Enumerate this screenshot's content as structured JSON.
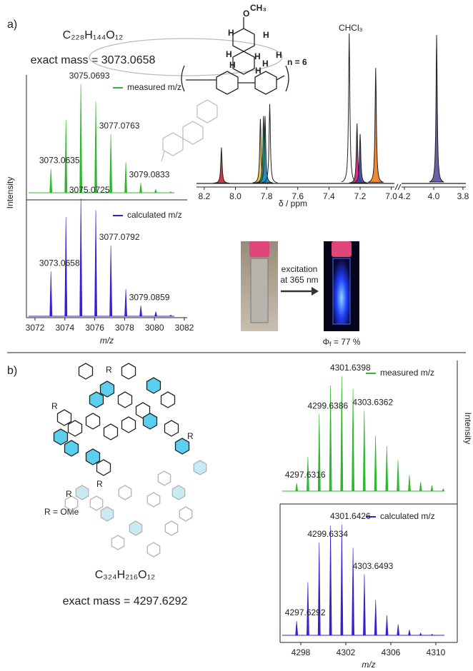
{
  "panel_labels": [
    "a)",
    "b)"
  ],
  "formula_a": "C₂₂₈H₁₄₄O₁₂",
  "exact_mass_a": "exact mass = 3073.0658",
  "structure_a_labels": [
    {
      "text": "O",
      "color": "#222222"
    },
    {
      "text": "CH₃",
      "color": "#222222"
    },
    {
      "text": "H",
      "color": "#1e8fd0"
    },
    {
      "text": "H",
      "color": "#d21f7a"
    },
    {
      "text": "H",
      "color": "#2aa84a"
    },
    {
      "text": "H",
      "color": "#c0282d"
    },
    {
      "text": "H",
      "color": "#1e8fd0"
    },
    {
      "text": "H",
      "color": "#d21f7a"
    },
    {
      "text": "H",
      "color": "#f07b1f"
    },
    {
      "text": "H",
      "color": "#c9a92a"
    },
    {
      "text": "n = 6",
      "color": "#222222"
    }
  ],
  "photo": {
    "excitation": [
      "excitation",
      "at 365 nm"
    ],
    "quantum_yield": [
      "Φ",
      "f",
      " = 77 %"
    ]
  },
  "formula_b": "C₃₂₄H₂₁₆O₁₂",
  "exact_mass_b": "exact mass = 4297.6292",
  "r_labels": [
    "R",
    "R",
    "R",
    "R",
    "R"
  ],
  "r_definition": "R = OMe",
  "chart_data": [
    {
      "type": "stick",
      "ylabel": "Intensity",
      "xlim": [
        3072,
        3082
      ],
      "ylim": [
        0,
        100
      ],
      "series": [
        {
          "name": "measured m/z",
          "color": "#2db82d",
          "x": [
            3073.0635,
            3074.07,
            3075.0693,
            3076.07,
            3077.0763,
            3078.08,
            3079.0833,
            3080.08,
            3081.09
          ],
          "values": [
            22,
            67,
            100,
            84,
            54,
            28,
            9,
            3,
            1
          ]
        }
      ],
      "peak_labels": [
        3073.0635,
        3075.0693,
        3077.0763,
        3079.0833
      ]
    },
    {
      "type": "stick",
      "xlabel": "m/z",
      "xlim": [
        3072,
        3082
      ],
      "ylim": [
        0,
        100
      ],
      "xticks": [
        3072,
        3074,
        3076,
        3078,
        3080,
        3082
      ],
      "series": [
        {
          "name": "calculated m/z",
          "color": "#3a1fd0",
          "x": [
            3073.0658,
            3074.07,
            3075.0725,
            3076.07,
            3077.0792,
            3078.08,
            3079.0859,
            3080.09,
            3081.09
          ],
          "values": [
            38,
            84,
            100,
            90,
            60,
            23,
            9,
            4,
            1
          ]
        }
      ],
      "peak_labels": [
        3073.0658,
        3075.0725,
        3077.0792,
        3079.0859
      ]
    },
    {
      "type": "nmr",
      "xlabel": "δ / ppm",
      "annotation": "CHCl₃",
      "ylim": [
        0,
        100
      ],
      "segments": [
        {
          "xlim": [
            8.25,
            6.98
          ],
          "xticks": [
            8.2,
            {
              "value": 8,
              "label": "8.0"
            },
            7.8,
            7.6,
            7.4,
            7.2,
            {
              "value": 7,
              "label": "7.0"
            }
          ]
        },
        {
          "xlim": [
            4.22,
            3.78
          ],
          "xticks": [
            4.2,
            {
              "value": 4,
              "label": "4.0"
            },
            3.8
          ]
        }
      ],
      "peaks": {
        "x": [
          8.09,
          7.84,
          7.82,
          7.81,
          7.78,
          7.27,
          7.22,
          7.2,
          7.1,
          3.98
        ],
        "values": [
          24,
          43,
          45,
          45,
          53,
          100,
          40,
          33,
          77,
          99
        ],
        "colors": [
          "#c0282d",
          "#e0c040",
          "#2aa84a",
          "#1e8fd0",
          null,
          null,
          "#d21f7a",
          "#3b3fa0",
          "#f07b1f",
          "#5a4fa0"
        ]
      }
    },
    {
      "type": "stick",
      "ylabel": "Intensity",
      "xlim": [
        4296,
        4312
      ],
      "ylim": [
        0,
        100
      ],
      "series": [
        {
          "name": "measured m/z",
          "color": "#2db82d",
          "x": [
            4297.6316,
            4298.63,
            4299.6386,
            4300.64,
            4301.6398,
            4302.64,
            4303.6362,
            4304.64,
            4305.64,
            4306.64,
            4307.65,
            4308.65,
            4309.65,
            4310.65
          ],
          "values": [
            7,
            30,
            67,
            92,
            100,
            89,
            70,
            48,
            39,
            27,
            14,
            8,
            5,
            2
          ]
        }
      ],
      "peak_labels": [
        4297.6316,
        4299.6386,
        4301.6398,
        4303.6362
      ]
    },
    {
      "type": "stick",
      "xlabel": "m/z",
      "xlim": [
        4296,
        4312
      ],
      "ylim": [
        0,
        100
      ],
      "xticks": [
        4298,
        4302,
        4306,
        4310
      ],
      "series": [
        {
          "name": "calculated m/z",
          "color": "#3a1fd0",
          "x": [
            4297.6292,
            4298.63,
            4299.6334,
            4300.64,
            4301.6426,
            4302.64,
            4303.6493,
            4304.65,
            4305.65,
            4306.65,
            4307.65,
            4308.65,
            4309.66
          ],
          "values": [
            13,
            48,
            84,
            99,
            100,
            79,
            55,
            32,
            18,
            10,
            5,
            2,
            1
          ]
        }
      ],
      "peak_labels": [
        4297.6292,
        4299.6334,
        4301.6426,
        4303.6493
      ]
    }
  ]
}
